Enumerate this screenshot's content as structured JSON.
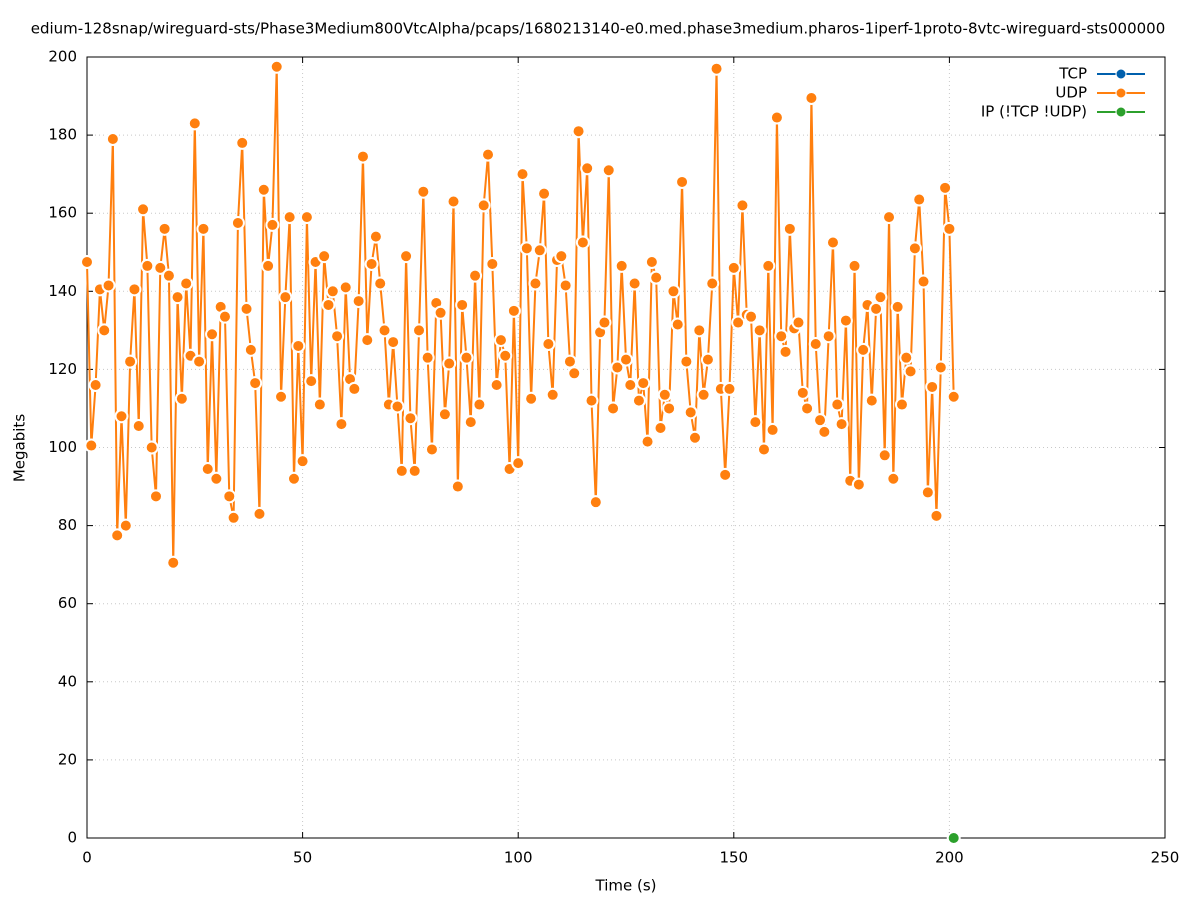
{
  "chart_data": {
    "type": "line",
    "title": "edium-128snap/wireguard-sts/Phase3Medium800VtcAlpha/pcaps/1680213140-e0.med.phase3medium.pharos-1iperf-1proto-8vtc-wireguard-sts000000",
    "x_label": "Time (s)",
    "y_label": "Megabits",
    "xlim": [
      0,
      250
    ],
    "ylim": [
      0,
      200
    ],
    "xticks": [
      0,
      50,
      100,
      150,
      200,
      250
    ],
    "yticks": [
      0,
      20,
      40,
      60,
      80,
      100,
      120,
      140,
      160,
      180,
      200
    ],
    "grid": true,
    "legend": "top-right",
    "series": [
      {
        "name": "TCP",
        "color": "#0060ad",
        "x": [],
        "values": []
      },
      {
        "name": "UDP",
        "color": "#ff7f0e",
        "x": [
          0,
          1,
          2,
          3,
          4,
          5,
          6,
          7,
          8,
          9,
          10,
          11,
          12,
          13,
          14,
          15,
          16,
          17,
          18,
          19,
          20,
          21,
          22,
          23,
          24,
          25,
          26,
          27,
          28,
          29,
          30,
          31,
          32,
          33,
          34,
          35,
          36,
          37,
          38,
          39,
          40,
          41,
          42,
          43,
          44,
          45,
          46,
          47,
          48,
          49,
          50,
          51,
          52,
          53,
          54,
          55,
          56,
          57,
          58,
          59,
          60,
          61,
          62,
          63,
          64,
          65,
          66,
          67,
          68,
          69,
          70,
          71,
          72,
          73,
          74,
          75,
          76,
          77,
          78,
          79,
          80,
          81,
          82,
          83,
          84,
          85,
          86,
          87,
          88,
          89,
          90,
          91,
          92,
          93,
          94,
          95,
          96,
          97,
          98,
          99,
          100,
          101,
          102,
          103,
          104,
          105,
          106,
          107,
          108,
          109,
          110,
          111,
          112,
          113,
          114,
          115,
          116,
          117,
          118,
          119,
          120,
          121,
          122,
          123,
          124,
          125,
          126,
          127,
          128,
          129,
          130,
          131,
          132,
          133,
          134,
          135,
          136,
          137,
          138,
          139,
          140,
          141,
          142,
          143,
          144,
          145,
          146,
          147,
          148,
          149,
          150,
          151,
          152,
          153,
          154,
          155,
          156,
          157,
          158,
          159,
          160,
          161,
          162,
          163,
          164,
          165,
          166,
          167,
          168,
          169,
          170,
          171,
          172,
          173,
          174,
          175,
          176,
          177,
          178,
          179,
          180,
          181,
          182,
          183,
          184,
          185,
          186,
          187,
          188,
          189,
          190,
          191,
          192,
          193,
          194,
          195,
          196,
          197,
          198,
          199,
          200,
          201
        ],
        "values": [
          147.5,
          100.5,
          116,
          140.5,
          130,
          141.5,
          179,
          77.5,
          108,
          80,
          122,
          140.5,
          105.5,
          161,
          146.5,
          100,
          87.5,
          146,
          156,
          144,
          70.5,
          138.5,
          112.5,
          142,
          123.5,
          183,
          122,
          156,
          94.5,
          129,
          92,
          136,
          133.5,
          87.5,
          82,
          157.5,
          178,
          135.5,
          125,
          116.5,
          83,
          166,
          146.5,
          157,
          197.5,
          113,
          138.5,
          159,
          92,
          126,
          96.5,
          159,
          117,
          147.5,
          111,
          149,
          136.5,
          140,
          128.5,
          106,
          141,
          117.5,
          115,
          137.5,
          174.5,
          127.5,
          147,
          154,
          142,
          130,
          111,
          127,
          110.5,
          94,
          149,
          107.5,
          94,
          130,
          165.5,
          123,
          99.5,
          137,
          134.5,
          108.5,
          121.5,
          163,
          90,
          136.5,
          123,
          106.5,
          144,
          111,
          162,
          175,
          147,
          116,
          127.5,
          123.5,
          94.5,
          135,
          96,
          170,
          151,
          112.5,
          142,
          150.5,
          165,
          126.5,
          113.5,
          148,
          149,
          141.5,
          122,
          119,
          181,
          152.5,
          171.5,
          112,
          86,
          129.5,
          132,
          171,
          110,
          120.5,
          146.5,
          122.5,
          116,
          142,
          112,
          116.5,
          101.5,
          147.5,
          143.5,
          105,
          113.5,
          110,
          140,
          131.5,
          168,
          122,
          109,
          102.5,
          130,
          113.5,
          122.5,
          142,
          197,
          115,
          93,
          115,
          146,
          132,
          162,
          134,
          133.5,
          106.5,
          130,
          99.5,
          146.5,
          104.5,
          184.5,
          128.5,
          124.5,
          156,
          130.5,
          132,
          114,
          110,
          189.5,
          126.5,
          107,
          104,
          128.5,
          152.5,
          111,
          106,
          132.5,
          91.5,
          146.5,
          90.5,
          125,
          136.5,
          112,
          135.5,
          138.5,
          98,
          159,
          92,
          136,
          111,
          123,
          119.5,
          151,
          163.5,
          142.5,
          88.5,
          115.5,
          82.5,
          120.5,
          166.5,
          156,
          113
        ]
      },
      {
        "name": "IP (!TCP  !UDP)",
        "color": "#2ca02c",
        "x": [
          201
        ],
        "values": [
          0
        ]
      }
    ]
  }
}
